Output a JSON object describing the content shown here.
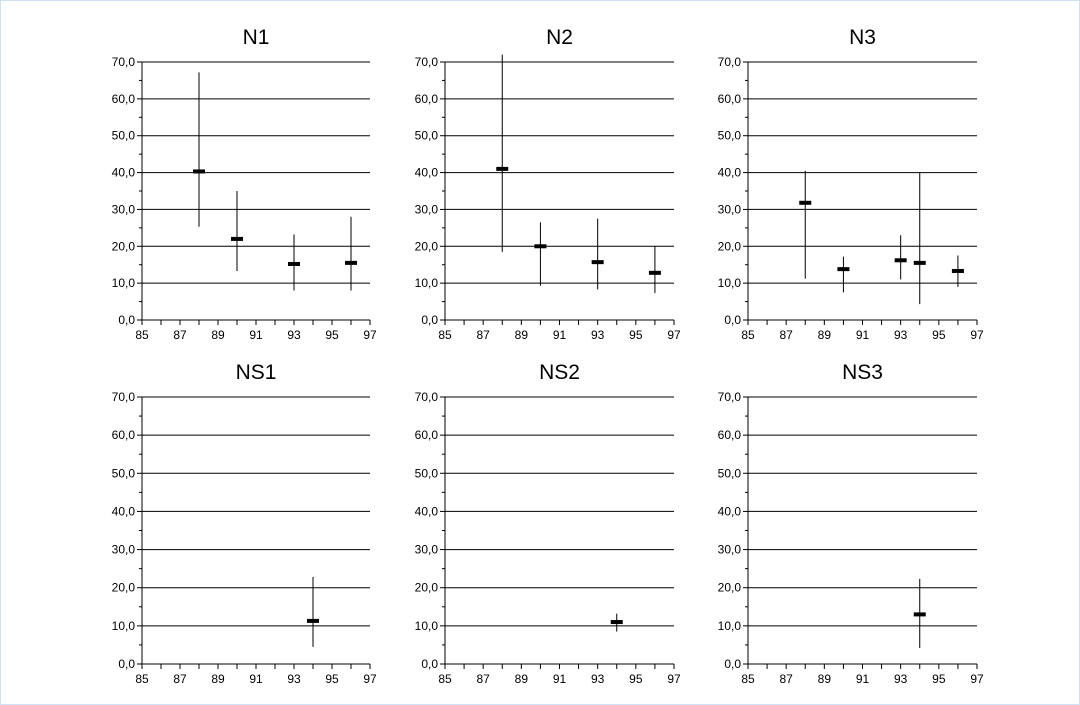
{
  "chart_data": [
    {
      "type": "errorbar",
      "title": "N1",
      "xlim": [
        85,
        97
      ],
      "ylim": [
        0,
        70
      ],
      "xticks": [
        85,
        87,
        89,
        91,
        93,
        95,
        97
      ],
      "yticks": [
        "0,0",
        "10,0",
        "20,0",
        "30,0",
        "40,0",
        "50,0",
        "60,0",
        "70,0"
      ],
      "grid": true,
      "points": [
        {
          "x": 88,
          "y": 40.3,
          "low": 25.3,
          "high": 67.2
        },
        {
          "x": 90,
          "y": 22.0,
          "low": 13.3,
          "high": 35.0
        },
        {
          "x": 93,
          "y": 15.2,
          "low": 8.0,
          "high": 23.2
        },
        {
          "x": 96,
          "y": 15.5,
          "low": 8.0,
          "high": 28.0
        }
      ]
    },
    {
      "type": "errorbar",
      "title": "N2",
      "xlim": [
        85,
        97
      ],
      "ylim": [
        0,
        70
      ],
      "xticks": [
        85,
        87,
        89,
        91,
        93,
        95,
        97
      ],
      "yticks": [
        "0,0",
        "10,0",
        "20,0",
        "30,0",
        "40,0",
        "50,0",
        "60,0",
        "70,0"
      ],
      "grid": true,
      "points": [
        {
          "x": 88,
          "y": 41.0,
          "low": 18.5,
          "high": 72.0
        },
        {
          "x": 90,
          "y": 20.0,
          "low": 9.3,
          "high": 26.5
        },
        {
          "x": 93,
          "y": 15.7,
          "low": 8.3,
          "high": 27.5
        },
        {
          "x": 96,
          "y": 12.8,
          "low": 7.3,
          "high": 20.0
        }
      ]
    },
    {
      "type": "errorbar",
      "title": "N3",
      "xlim": [
        85,
        97
      ],
      "ylim": [
        0,
        70
      ],
      "xticks": [
        85,
        87,
        89,
        91,
        93,
        95,
        97
      ],
      "yticks": [
        "0,0",
        "10,0",
        "20,0",
        "30,0",
        "40,0",
        "50,0",
        "60,0",
        "70,0"
      ],
      "grid": true,
      "points": [
        {
          "x": 88,
          "y": 31.8,
          "low": 11.2,
          "high": 40.5
        },
        {
          "x": 90,
          "y": 13.8,
          "low": 7.5,
          "high": 17.2
        },
        {
          "x": 93,
          "y": 16.2,
          "low": 11.0,
          "high": 23.0
        },
        {
          "x": 94,
          "y": 15.5,
          "low": 4.3,
          "high": 40.0
        },
        {
          "x": 96,
          "y": 13.3,
          "low": 9.0,
          "high": 17.5
        }
      ]
    },
    {
      "type": "errorbar",
      "title": "NS1",
      "xlim": [
        85,
        97
      ],
      "ylim": [
        0,
        70
      ],
      "xticks": [
        85,
        87,
        89,
        91,
        93,
        95,
        97
      ],
      "yticks": [
        "0,0",
        "10,0",
        "20,0",
        "30,0",
        "40,0",
        "50,0",
        "60,0",
        "70,0"
      ],
      "grid": true,
      "points": [
        {
          "x": 94,
          "y": 11.3,
          "low": 4.5,
          "high": 22.8
        }
      ]
    },
    {
      "type": "errorbar",
      "title": "NS2",
      "xlim": [
        85,
        97
      ],
      "ylim": [
        0,
        70
      ],
      "xticks": [
        85,
        87,
        89,
        91,
        93,
        95,
        97
      ],
      "yticks": [
        "0,0",
        "10,0",
        "20,0",
        "30,0",
        "40,0",
        "50,0",
        "60,0",
        "70,0"
      ],
      "grid": true,
      "points": [
        {
          "x": 94,
          "y": 11.0,
          "low": 8.5,
          "high": 13.2
        }
      ]
    },
    {
      "type": "errorbar",
      "title": "NS3",
      "xlim": [
        85,
        97
      ],
      "ylim": [
        0,
        70
      ],
      "xticks": [
        85,
        87,
        89,
        91,
        93,
        95,
        97
      ],
      "yticks": [
        "0,0",
        "10,0",
        "20,0",
        "30,0",
        "40,0",
        "50,0",
        "60,0",
        "70,0"
      ],
      "grid": true,
      "points": [
        {
          "x": 94,
          "y": 13.0,
          "low": 4.2,
          "high": 22.3
        }
      ]
    }
  ]
}
